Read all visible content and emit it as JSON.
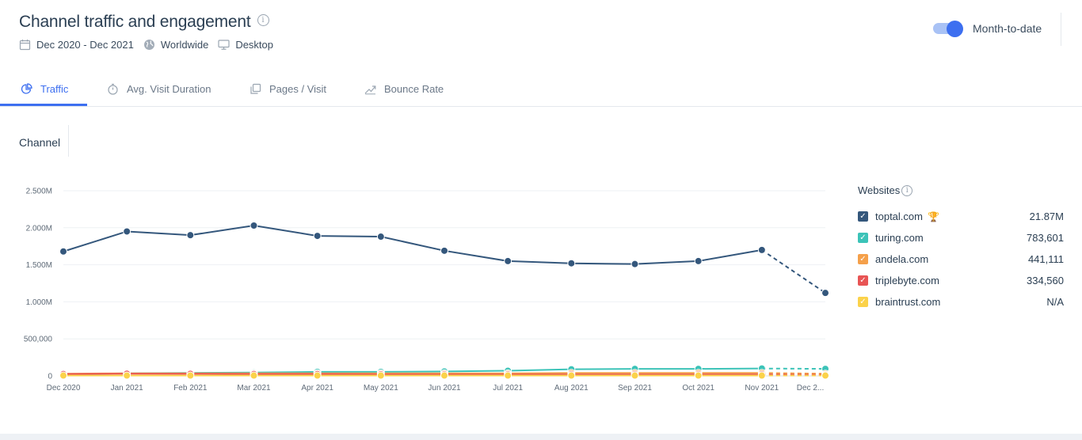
{
  "header": {
    "title": "Channel traffic and engagement",
    "date_range": "Dec 2020 - Dec 2021",
    "region": "Worldwide",
    "device": "Desktop"
  },
  "toggle": {
    "label": "Month-to-date",
    "on": true
  },
  "tabs": [
    {
      "label": "Traffic",
      "icon": "pie-chart-icon",
      "active": true
    },
    {
      "label": "Avg. Visit Duration",
      "icon": "stopwatch-icon",
      "active": false
    },
    {
      "label": "Pages / Visit",
      "icon": "pages-icon",
      "active": false
    },
    {
      "label": "Bounce Rate",
      "icon": "trend-icon",
      "active": false
    }
  ],
  "channel_label": "Channel",
  "legend": {
    "title": "Websites",
    "items": [
      {
        "site": "toptal.com",
        "value": "21.87M",
        "color": "#34577c",
        "trophy": true
      },
      {
        "site": "turing.com",
        "value": "783,601",
        "color": "#3cc3b8",
        "trophy": false
      },
      {
        "site": "andela.com",
        "value": "441,111",
        "color": "#f5a04a",
        "trophy": false
      },
      {
        "site": "triplebyte.com",
        "value": "334,560",
        "color": "#e85454",
        "trophy": false
      },
      {
        "site": "braintrust.com",
        "value": "N/A",
        "color": "#fbd24a",
        "trophy": false
      }
    ]
  },
  "chart_data": {
    "type": "line",
    "categories": [
      "Dec 2020",
      "Jan 2021",
      "Feb 2021",
      "Mar 2021",
      "Apr 2021",
      "May 2021",
      "Jun 2021",
      "Jul 2021",
      "Aug 2021",
      "Sep 2021",
      "Oct 2021",
      "Nov 2021",
      "Dec 2..."
    ],
    "yticks": [
      0,
      500000,
      1000000,
      1500000,
      2000000,
      2500000
    ],
    "ytick_labels": [
      "0",
      "500,000",
      "1.000M",
      "1.500M",
      "2.000M",
      "2.500M"
    ],
    "ylim": [
      0,
      2500000
    ],
    "grid": true,
    "partial_last_point": true,
    "series": [
      {
        "name": "toptal.com",
        "color": "#34577c",
        "values": [
          1680000,
          1950000,
          1900000,
          2030000,
          1890000,
          1880000,
          1690000,
          1550000,
          1520000,
          1510000,
          1550000,
          1700000,
          1120000
        ]
      },
      {
        "name": "turing.com",
        "color": "#3cc3b8",
        "values": [
          20000,
          35000,
          40000,
          45000,
          55000,
          55000,
          60000,
          70000,
          90000,
          95000,
          95000,
          100000,
          95000
        ]
      },
      {
        "name": "andela.com",
        "color": "#f5a04a",
        "values": [
          30000,
          35000,
          35000,
          35000,
          35000,
          35000,
          35000,
          35000,
          40000,
          40000,
          40000,
          40000,
          30000
        ]
      },
      {
        "name": "triplebyte.com",
        "color": "#e85454",
        "values": [
          25000,
          30000,
          28000,
          25000,
          25000,
          22000,
          20000,
          20000,
          20000,
          20000,
          20000,
          20000,
          15000
        ]
      },
      {
        "name": "braintrust.com",
        "color": "#fbd24a",
        "values": [
          5000,
          5000,
          5000,
          5000,
          5000,
          5000,
          5000,
          5000,
          5000,
          5000,
          5000,
          5000,
          5000
        ]
      }
    ]
  }
}
